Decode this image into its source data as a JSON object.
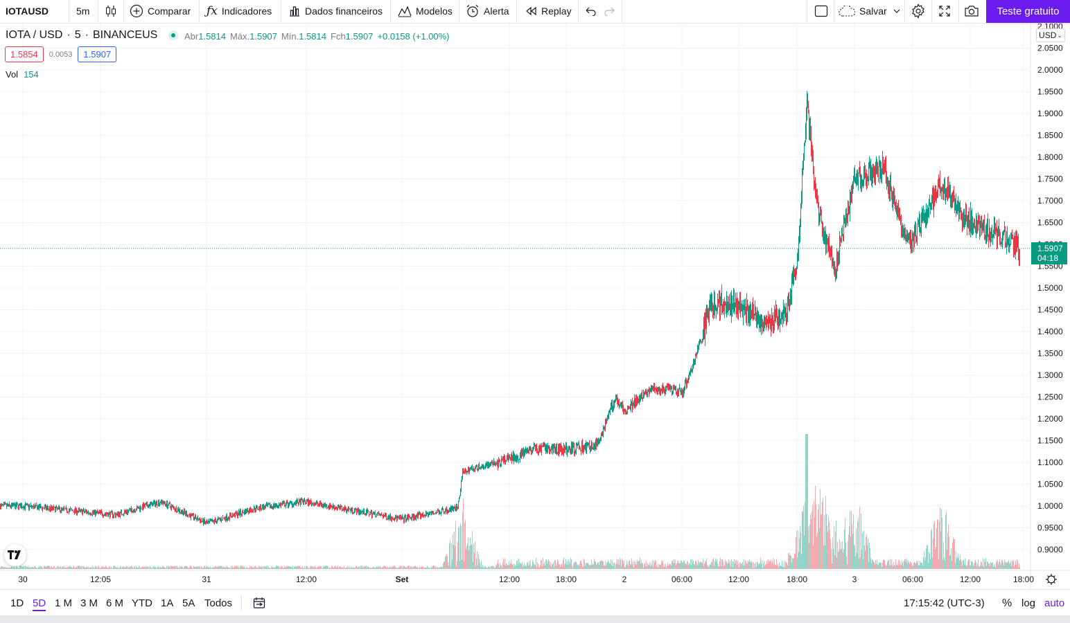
{
  "toolbar": {
    "symbol": "IOTAUSD",
    "interval": "5m",
    "compare_label": "Comparar",
    "indicators_label": "Indicadores",
    "financials_label": "Dados financeiros",
    "templates_label": "Modelos",
    "alert_label": "Alerta",
    "replay_label": "Replay",
    "save_label": "Salvar",
    "trial_label": "Teste gratuito"
  },
  "legend": {
    "title": "IOTA / USD",
    "interval": "5",
    "exchange": "BINANCEUS",
    "open_key": "Abr",
    "open": "1.5814",
    "high_key": "Máx.",
    "high": "1.5907",
    "low_key": "Mín.",
    "low": "1.5814",
    "close_key": "Fch",
    "close": "1.5907",
    "change": "+0.0158 (+1.00%)",
    "bid": "1.5854",
    "spread": "0.0053",
    "ask": "1.5907",
    "vol_label": "Vol",
    "vol_value": "154"
  },
  "price_axis": {
    "currency": "USD",
    "last_price": "1.5907",
    "countdown": "04:18"
  },
  "bottom": {
    "ranges": [
      "1D",
      "5D",
      "1 M",
      "3 M",
      "6 M",
      "YTD",
      "1A",
      "5A",
      "Todos"
    ],
    "active_range": "5D",
    "clock": "17:15:42 (UTC-3)",
    "percent_label": "%",
    "log_label": "log",
    "auto_label": "auto"
  },
  "colors": {
    "up": "#089981",
    "down": "#f23645",
    "accent": "#6a1bf0",
    "grid": "#f0f3fa"
  },
  "chart_data": {
    "type": "candlestick",
    "symbol": "IOTA / USD",
    "interval_minutes": 5,
    "ylim": [
      0.87,
      2.1
    ],
    "y_ticks": [
      "2.1000",
      "2.0500",
      "2.0000",
      "1.9500",
      "1.9000",
      "1.8500",
      "1.8000",
      "1.7500",
      "1.7000",
      "1.6500",
      "1.6000",
      "1.5500",
      "1.5000",
      "1.4500",
      "1.4000",
      "1.3500",
      "1.3000",
      "1.2500",
      "1.2000",
      "1.1500",
      "1.1000",
      "1.0500",
      "1.0000",
      "0.9500",
      "0.9000"
    ],
    "x_ticks": [
      "30",
      "12:05",
      "31",
      "12:00",
      "Set",
      "12:00",
      "18:00",
      "2",
      "06:00",
      "12:00",
      "18:00",
      "3",
      "06:00",
      "12:00",
      "18:00"
    ],
    "price_path": [
      {
        "x": "30 00:00",
        "close": 1.0
      },
      {
        "x": "30 12:05",
        "close": 0.98
      },
      {
        "x": "30 18:00",
        "close": 1.01
      },
      {
        "x": "31 00:00",
        "close": 0.96
      },
      {
        "x": "31 06:00",
        "close": 0.995
      },
      {
        "x": "31 12:00",
        "close": 1.01
      },
      {
        "x": "31 18:00",
        "close": 0.99
      },
      {
        "x": "Set 00:00",
        "close": 0.97
      },
      {
        "x": "Set 06:00",
        "close": 0.995
      },
      {
        "x": "Set 06:30",
        "close": 1.08
      },
      {
        "x": "Set 12:00",
        "close": 1.11
      },
      {
        "x": "Set 14:00",
        "close": 1.13
      },
      {
        "x": "Set 18:00",
        "close": 1.13
      },
      {
        "x": "Set 21:00",
        "close": 1.14
      },
      {
        "x": "Set 23:00",
        "close": 1.25
      },
      {
        "x": "2 00:00",
        "close": 1.22
      },
      {
        "x": "2 03:00",
        "close": 1.27
      },
      {
        "x": "2 06:00",
        "close": 1.26
      },
      {
        "x": "2 08:00",
        "close": 1.38
      },
      {
        "x": "2 09:00",
        "close": 1.47
      },
      {
        "x": "2 12:00",
        "close": 1.46
      },
      {
        "x": "2 15:00",
        "close": 1.42
      },
      {
        "x": "2 17:00",
        "close": 1.45
      },
      {
        "x": "2 18:00",
        "close": 1.56
      },
      {
        "x": "2 19:00",
        "close": 1.92
      },
      {
        "x": "2 20:00",
        "close": 1.7
      },
      {
        "x": "2 21:00",
        "close": 1.6
      },
      {
        "x": "2 22:00",
        "close": 1.55
      },
      {
        "x": "3 00:00",
        "close": 1.75
      },
      {
        "x": "3 03:00",
        "close": 1.78
      },
      {
        "x": "3 05:00",
        "close": 1.64
      },
      {
        "x": "3 06:00",
        "close": 1.61
      },
      {
        "x": "3 09:00",
        "close": 1.74
      },
      {
        "x": "3 11:00",
        "close": 1.67
      },
      {
        "x": "3 14:00",
        "close": 1.63
      },
      {
        "x": "3 17:15",
        "close": 1.5907
      }
    ],
    "volume_spike_times": [
      "Set 06:30",
      "2 19:00",
      "2 21:00",
      "3 00:00",
      "3 09:00"
    ]
  }
}
